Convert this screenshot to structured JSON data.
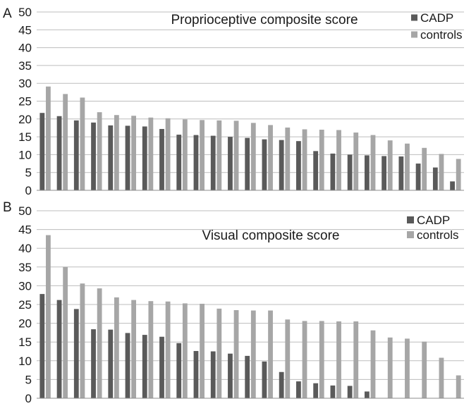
{
  "panels": [
    {
      "letter": "A",
      "chart_data": {
        "type": "bar",
        "title": "Proprioceptive composite score",
        "ylim": [
          0,
          50
        ],
        "yticks": [
          0,
          5,
          10,
          15,
          20,
          25,
          30,
          35,
          40,
          45,
          50
        ],
        "grid": true,
        "legend_position": "top-right",
        "series": [
          {
            "name": "CADP",
            "color": "#5a5a5a",
            "values": [
              21.7,
              20.8,
              19.6,
              19.0,
              18.2,
              18.1,
              17.9,
              17.2,
              15.6,
              15.5,
              15.3,
              15.0,
              14.7,
              14.3,
              14.1,
              13.8,
              11.0,
              10.3,
              10.0,
              9.8,
              9.6,
              9.5,
              7.5,
              6.4,
              2.5
            ]
          },
          {
            "name": "controls",
            "color": "#a6a6a6",
            "values": [
              29.1,
              27.0,
              26.0,
              21.9,
              21.1,
              20.9,
              20.4,
              20.2,
              19.9,
              19.7,
              19.6,
              19.5,
              18.9,
              18.3,
              17.6,
              17.1,
              17.0,
              16.9,
              16.2,
              15.5,
              14.0,
              13.1,
              11.9,
              10.2,
              8.8
            ]
          }
        ]
      }
    },
    {
      "letter": "B",
      "chart_data": {
        "type": "bar",
        "title": "Visual composite score",
        "ylim": [
          0,
          50
        ],
        "yticks": [
          0,
          5,
          10,
          15,
          20,
          25,
          30,
          35,
          40,
          45,
          50
        ],
        "grid": true,
        "legend_position": "top-right",
        "series": [
          {
            "name": "CADP",
            "color": "#5a5a5a",
            "values": [
              27.8,
              26.2,
              23.8,
              18.4,
              18.3,
              17.4,
              16.9,
              16.4,
              14.7,
              12.6,
              12.5,
              11.9,
              11.3,
              9.8,
              7.0,
              4.5,
              4.0,
              3.4,
              3.3,
              1.8,
              0,
              0,
              0,
              0,
              0
            ]
          },
          {
            "name": "controls",
            "color": "#a6a6a6",
            "values": [
              43.5,
              35.0,
              30.6,
              29.3,
              26.9,
              26.2,
              25.9,
              25.8,
              25.3,
              25.2,
              23.9,
              23.5,
              23.4,
              23.4,
              21.0,
              20.6,
              20.6,
              20.5,
              20.5,
              18.1,
              16.2,
              15.9,
              15.1,
              10.8,
              6.1
            ]
          }
        ]
      }
    }
  ]
}
